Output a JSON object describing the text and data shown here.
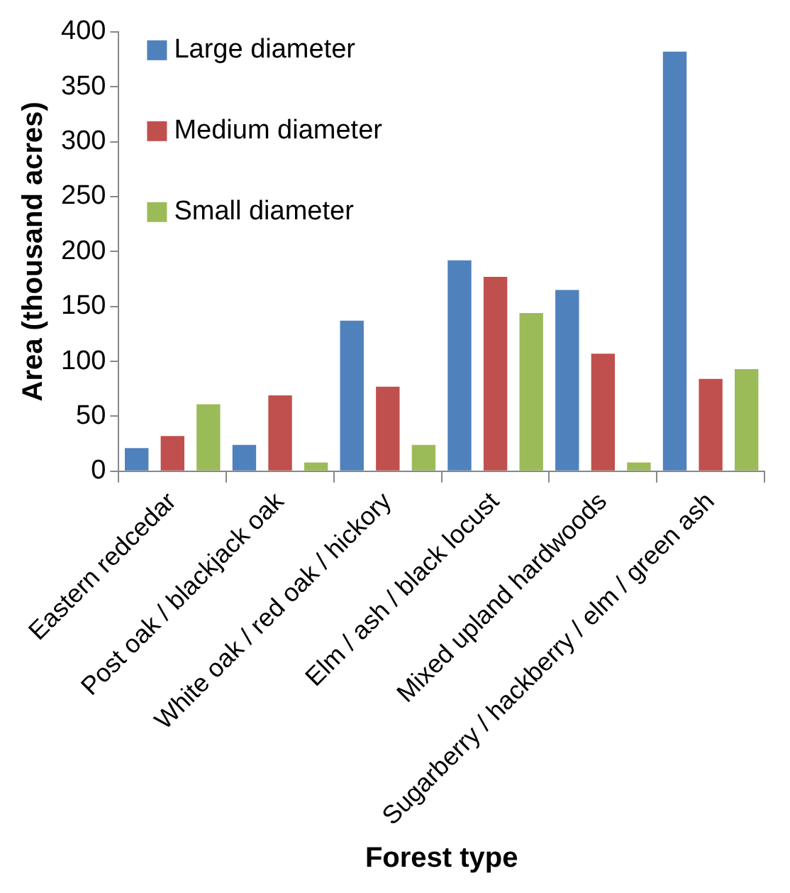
{
  "chart_data": {
    "type": "bar",
    "xlabel": "Forest type",
    "ylabel": "Area (thousand acres)",
    "categories": [
      "Eastern redcedar",
      "Post oak / blackjack oak",
      "White oak / red oak / hickory",
      "Elm / ash / black locust",
      "Mixed upland hardwoods",
      "Sugarberry / hackberry / elm / green ash"
    ],
    "series": [
      {
        "name": "Large diameter",
        "color": "#4f81bd",
        "values": [
          21,
          24,
          137,
          192,
          165,
          382
        ]
      },
      {
        "name": "Medium diameter",
        "color": "#c0504d",
        "values": [
          32,
          69,
          77,
          177,
          107,
          84
        ]
      },
      {
        "name": "Small diameter",
        "color": "#9bbb59",
        "values": [
          61,
          8,
          24,
          144,
          8,
          93
        ]
      }
    ],
    "ylim": [
      0,
      400
    ],
    "yticks": [
      0,
      50,
      100,
      150,
      200,
      250,
      300,
      350,
      400
    ],
    "grid": false,
    "legend": "top left"
  }
}
